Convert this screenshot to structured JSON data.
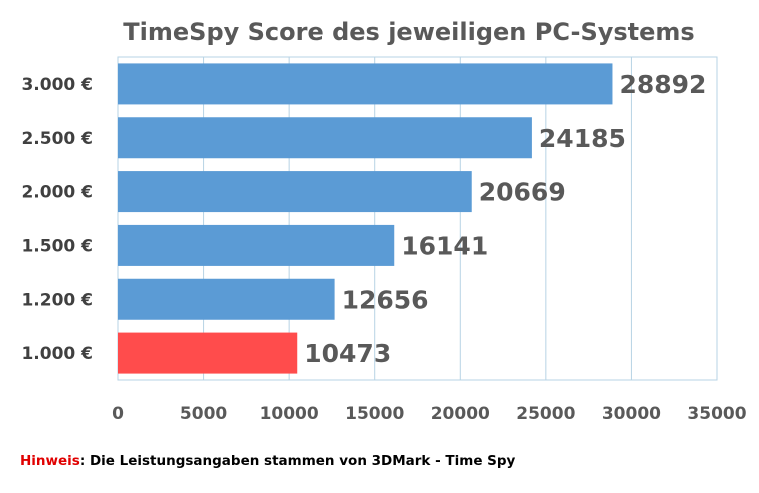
{
  "chart_data": {
    "type": "bar",
    "orientation": "horizontal",
    "title": "TimeSpy Score des jeweiligen PC-Systems",
    "categories": [
      "3.000 €",
      "2.500 €",
      "2.000 €",
      "1.500 €",
      "1.200 €",
      "1.000 €"
    ],
    "values": [
      28892,
      24185,
      20669,
      16141,
      12656,
      10473
    ],
    "xlim": [
      0,
      35000
    ],
    "x_ticks": [
      "0",
      "5000",
      "10000",
      "15000",
      "20000",
      "25000",
      "30000",
      "35000"
    ],
    "x_tick_values": [
      0,
      5000,
      10000,
      15000,
      20000,
      25000,
      30000,
      35000
    ],
    "grid": true,
    "colors": {
      "bar": "#5b9bd5",
      "highlight_bar": "#ff4c4c",
      "highlight_category": "1.000 €",
      "grid": "#b7d3e4",
      "frame": "#b7d3e4"
    }
  },
  "footnote": {
    "label": "Hinweis",
    "separator": ": ",
    "text": "Die Leistungsangaben stammen von 3DMark - Time Spy",
    "label_color": "#e00000"
  }
}
